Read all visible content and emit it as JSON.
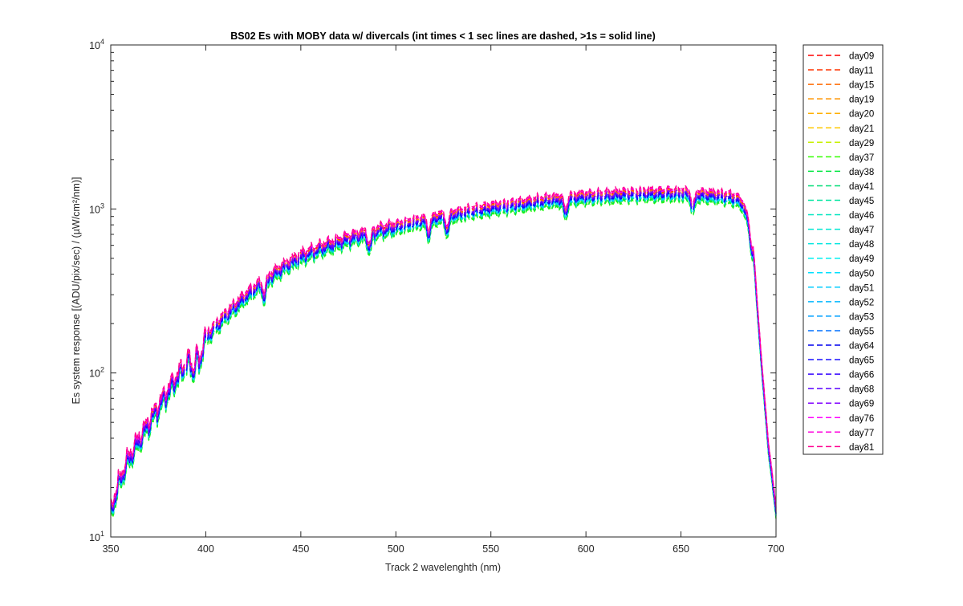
{
  "chart_data": {
    "type": "line",
    "title": "BS02 Es with MOBY data w/ divercals (int times < 1 sec lines are dashed, >1s = solid line)",
    "xlabel": "Track 2 wavelenghth (nm)",
    "ylabel": "Es system response [(ADU/pix/sec) / (µW/cm²/nm)]",
    "xlim": [
      350,
      700
    ],
    "ylim": [
      10,
      10000
    ],
    "yscale": "log",
    "grid": false,
    "legend_position": "outside-right",
    "x_ticks": [
      350,
      400,
      450,
      500,
      550,
      600,
      650,
      700
    ],
    "x_tick_labels": [
      "350",
      "400",
      "450",
      "500",
      "550",
      "600",
      "650",
      "700"
    ],
    "y_ticks": [
      10,
      100,
      1000,
      10000
    ],
    "y_tick_base": "10",
    "y_tick_exponents": [
      "1",
      "2",
      "3",
      "4"
    ],
    "x": [
      350,
      355,
      360,
      365,
      370,
      375,
      380,
      385,
      390,
      395,
      400,
      410,
      420,
      430,
      440,
      450,
      460,
      470,
      480,
      490,
      500,
      510,
      520,
      530,
      540,
      550,
      560,
      570,
      580,
      590,
      600,
      610,
      620,
      630,
      640,
      650,
      660,
      670,
      675,
      680,
      683,
      686,
      688,
      690,
      693,
      696,
      700
    ],
    "base_profile": [
      14,
      22,
      30,
      38,
      48,
      60,
      75,
      92,
      112,
      130,
      160,
      215,
      280,
      350,
      425,
      500,
      560,
      615,
      670,
      715,
      760,
      810,
      860,
      905,
      950,
      990,
      1025,
      1065,
      1100,
      1135,
      1160,
      1180,
      1195,
      1205,
      1215,
      1225,
      1200,
      1170,
      1155,
      1120,
      1000,
      800,
      600,
      260,
      90,
      35,
      14
    ],
    "series": [
      {
        "name": "day09",
        "color": "#ff0000",
        "scale": 1.07
      },
      {
        "name": "day11",
        "color": "#ff3300",
        "scale": 1.06
      },
      {
        "name": "day15",
        "color": "#ff6a00",
        "scale": 1.05
      },
      {
        "name": "day19",
        "color": "#ff9500",
        "scale": 1.04
      },
      {
        "name": "day20",
        "color": "#ffb000",
        "scale": 1.03
      },
      {
        "name": "day21",
        "color": "#ffc800",
        "scale": 1.02
      },
      {
        "name": "day29",
        "color": "#c8f000",
        "scale": 0.94
      },
      {
        "name": "day37",
        "color": "#33ff00",
        "scale": 0.92
      },
      {
        "name": "day38",
        "color": "#00e640",
        "scale": 0.93
      },
      {
        "name": "day41",
        "color": "#00dd77",
        "scale": 0.95
      },
      {
        "name": "day45",
        "color": "#00e6a0",
        "scale": 0.96
      },
      {
        "name": "day46",
        "color": "#00e6c0",
        "scale": 0.97
      },
      {
        "name": "day47",
        "color": "#00e6d2",
        "scale": 0.98
      },
      {
        "name": "day48",
        "color": "#00e6e0",
        "scale": 0.99
      },
      {
        "name": "day49",
        "color": "#00f0f0",
        "scale": 1.0
      },
      {
        "name": "day50",
        "color": "#00e0ff",
        "scale": 0.96
      },
      {
        "name": "day51",
        "color": "#00ccff",
        "scale": 0.97
      },
      {
        "name": "day52",
        "color": "#00b8ff",
        "scale": 0.98
      },
      {
        "name": "day53",
        "color": "#00a0ff",
        "scale": 0.99
      },
      {
        "name": "day55",
        "color": "#0070ff",
        "scale": 1.0
      },
      {
        "name": "day64",
        "color": "#0000ee",
        "scale": 0.99
      },
      {
        "name": "day65",
        "color": "#1a10ff",
        "scale": 1.0
      },
      {
        "name": "day66",
        "color": "#3300ff",
        "scale": 1.01
      },
      {
        "name": "day68",
        "color": "#5a00ff",
        "scale": 1.02
      },
      {
        "name": "day69",
        "color": "#8000ff",
        "scale": 1.03
      },
      {
        "name": "day76",
        "color": "#ff00ff",
        "scale": 1.08
      },
      {
        "name": "day77",
        "color": "#ff00dd",
        "scale": 1.09
      },
      {
        "name": "day81",
        "color": "#ff0090",
        "scale": 1.1
      }
    ]
  }
}
